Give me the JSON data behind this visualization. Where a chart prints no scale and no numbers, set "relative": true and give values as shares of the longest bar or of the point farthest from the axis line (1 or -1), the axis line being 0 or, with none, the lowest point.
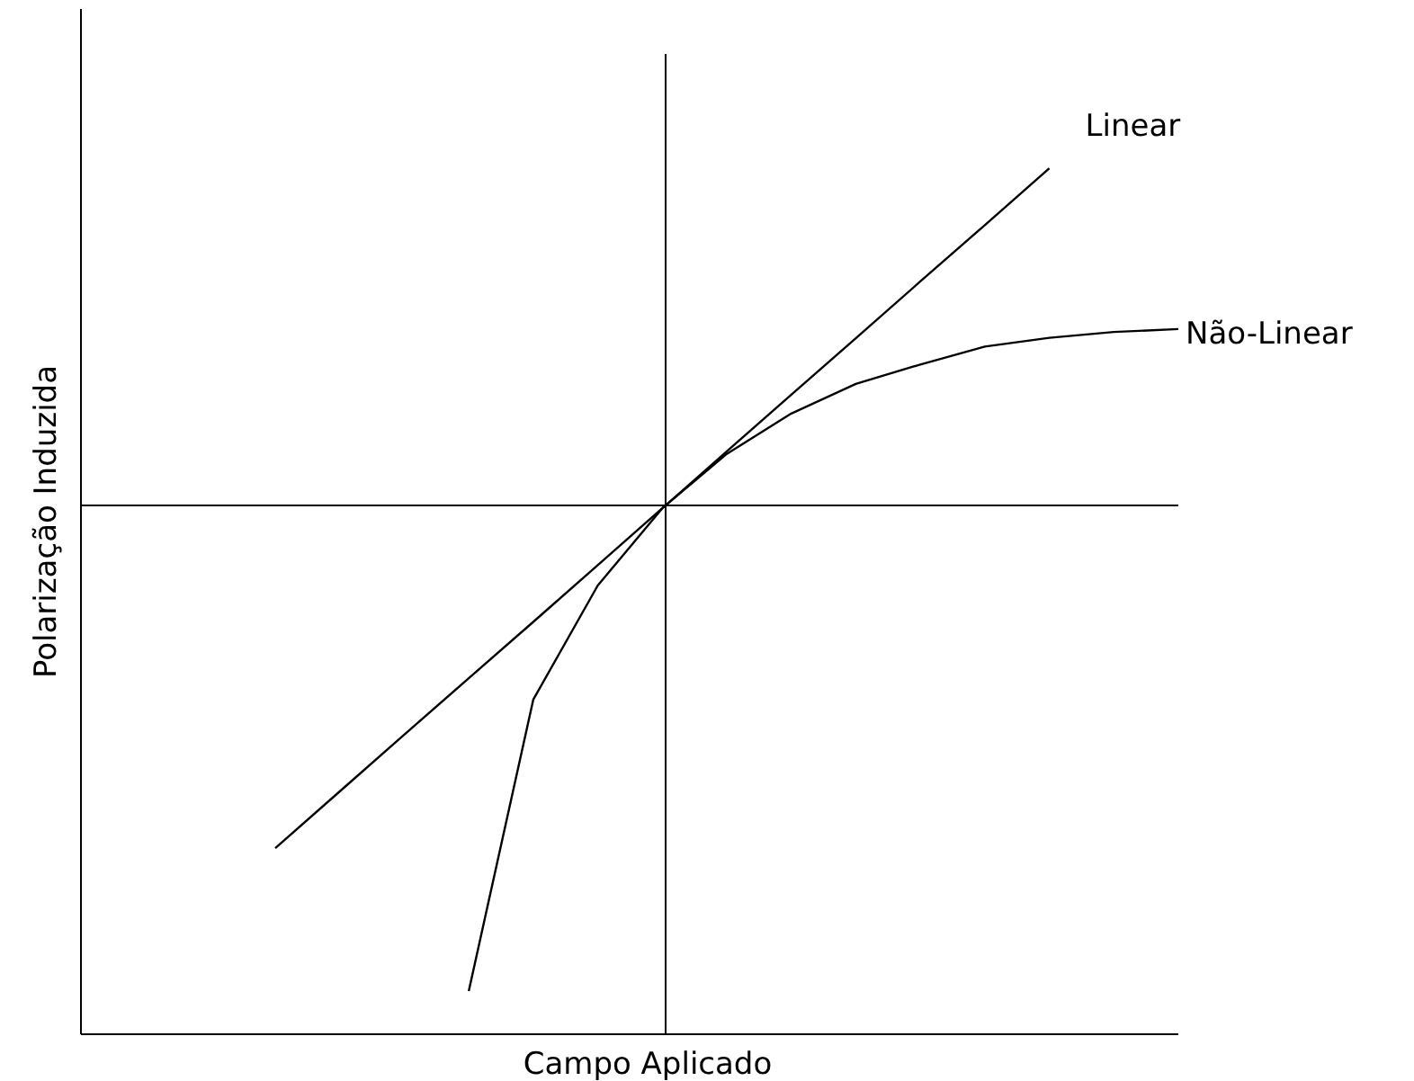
{
  "chart_data": {
    "type": "line",
    "relative": true,
    "xlabel": "Campo Aplicado",
    "annotations": [
      "Polarização Induzida"
    ],
    "marker": "none",
    "line_style": "solid",
    "legend": false,
    "categories": [
      null,
      null,
      null,
      null,
      null,
      null,
      null,
      null,
      null,
      null,
      null,
      null,
      null,
      null,
      null
    ],
    "series": [
      {
        "name": "Linear",
        "color": "#000000",
        "values": [
          -0.706,
          -0.589,
          -0.472,
          -0.356,
          -0.24,
          -0.123,
          -0.006,
          0.111,
          0.228,
          0.344,
          0.461,
          0.577,
          0.694,
          null,
          null
        ]
      },
      {
        "name": "Não-Linear",
        "color": "#000000",
        "values": [
          null,
          null,
          null,
          -1,
          -0.4,
          -0.165,
          -0.006,
          0.106,
          0.189,
          0.25,
          0.29,
          0.327,
          0.345,
          0.357,
          0.363
        ]
      }
    ]
  }
}
